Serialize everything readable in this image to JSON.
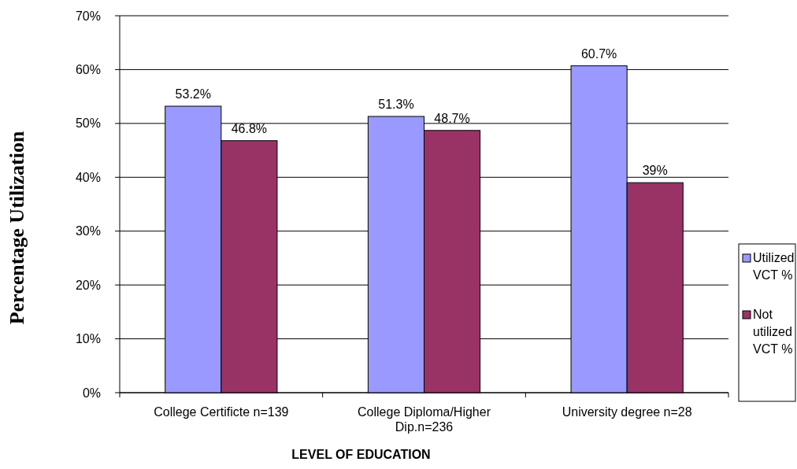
{
  "chart_data": {
    "type": "bar",
    "xlabel": "LEVEL OF EDUCATION",
    "ylabel": "Percentage Utilization",
    "categories": [
      "College Certificte n=139",
      "College Diploma/Higher Dip.n=236",
      "University degree  n=28"
    ],
    "series": [
      {
        "name": "Utilized VCT %",
        "color": "#9999ff",
        "values": [
          53.2,
          51.3,
          60.7
        ],
        "value_labels": [
          "53.2%",
          "51.3%",
          "60.7%"
        ]
      },
      {
        "name": "Not utilized VCT %",
        "color": "#993366",
        "values": [
          46.8,
          48.7,
          39
        ],
        "value_labels": [
          "46.8%",
          "48.7%",
          "39%"
        ]
      }
    ],
    "ylim": [
      0,
      70
    ],
    "yticks": [
      {
        "value": 0,
        "label": "0%"
      },
      {
        "value": 10,
        "label": "10%"
      },
      {
        "value": 20,
        "label": "20%"
      },
      {
        "value": 30,
        "label": "30%"
      },
      {
        "value": 40,
        "label": "40%"
      },
      {
        "value": 50,
        "label": "50%"
      },
      {
        "value": 60,
        "label": "60%"
      },
      {
        "value": 70,
        "label": "70%"
      }
    ],
    "grid": "y",
    "legend": "right"
  }
}
